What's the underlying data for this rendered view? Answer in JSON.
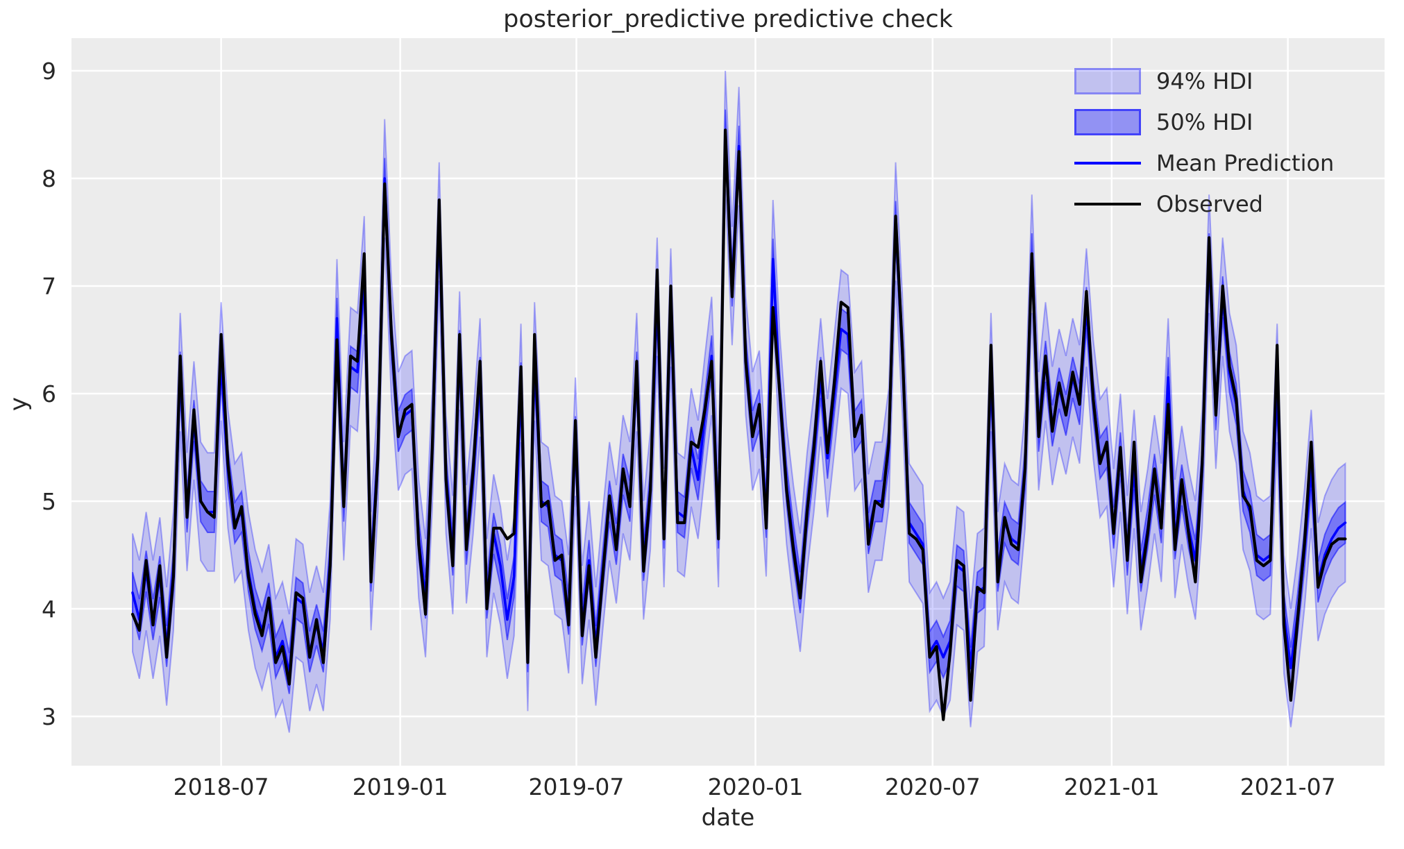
{
  "figure": {
    "title": "posterior_predictive predictive check"
  },
  "chart_data": {
    "type": "line",
    "title": "posterior_predictive predictive check",
    "xlabel": "date",
    "ylabel": "y",
    "grid": true,
    "background_color": "#ececec",
    "grid_color": "#ffffff",
    "text_color": "#262626",
    "x_start_date": "2018-04-01",
    "x_step_days": 7,
    "x_tick_labels": [
      "2018-07",
      "2019-01",
      "2019-07",
      "2020-01",
      "2020-07",
      "2021-01",
      "2021-07"
    ],
    "y_ticks": [
      3,
      4,
      5,
      6,
      7,
      8,
      9
    ],
    "ylim_shown": [
      2.55,
      9.3
    ],
    "legend": {
      "position": "upper right",
      "entries": [
        {
          "label": "94% HDI",
          "type": "band",
          "color": "#0000ff",
          "opacity": 0.18
        },
        {
          "label": "50% HDI",
          "type": "band",
          "color": "#0000ff",
          "opacity": 0.38
        },
        {
          "label": "Mean Prediction",
          "type": "line",
          "color": "#0000ff"
        },
        {
          "label": "Observed",
          "type": "line",
          "color": "#000000"
        }
      ]
    },
    "bands": [
      {
        "name": "94% HDI",
        "around": "Mean Prediction",
        "halfwidth": 0.55,
        "color": "#0000ff",
        "opacity": 0.18
      },
      {
        "name": "50% HDI",
        "around": "Mean Prediction",
        "halfwidth": 0.19,
        "color": "#0000ff",
        "opacity": 0.38
      }
    ],
    "series": [
      {
        "name": "Mean Prediction",
        "color": "#0000ff",
        "values": [
          4.15,
          3.9,
          4.35,
          3.9,
          4.3,
          3.65,
          4.35,
          6.2,
          4.9,
          5.75,
          5.0,
          4.9,
          4.9,
          6.3,
          5.3,
          4.8,
          4.9,
          4.35,
          4.0,
          3.8,
          4.05,
          3.55,
          3.7,
          3.4,
          4.1,
          4.05,
          3.6,
          3.85,
          3.6,
          4.45,
          6.7,
          5.0,
          6.25,
          6.2,
          7.1,
          4.35,
          5.45,
          8.0,
          6.5,
          5.65,
          5.8,
          5.85,
          4.65,
          4.1,
          5.5,
          7.6,
          5.25,
          4.5,
          6.4,
          4.6,
          5.25,
          6.15,
          4.1,
          4.7,
          4.4,
          3.9,
          4.3,
          6.1,
          3.6,
          6.3,
          5.0,
          4.95,
          4.5,
          4.45,
          3.95,
          5.6,
          3.85,
          4.45,
          3.65,
          4.35,
          5.0,
          4.6,
          5.25,
          5.0,
          6.2,
          4.45,
          5.1,
          6.9,
          4.75,
          6.8,
          4.9,
          4.85,
          5.5,
          5.2,
          5.8,
          6.35,
          4.75,
          8.45,
          7.0,
          8.3,
          6.35,
          5.65,
          5.85,
          4.85,
          7.25,
          6.0,
          5.15,
          4.6,
          4.15,
          4.9,
          5.45,
          6.15,
          5.4,
          6.0,
          6.6,
          6.55,
          5.65,
          5.75,
          4.7,
          5.0,
          5.0,
          5.5,
          7.6,
          6.35,
          4.8,
          4.7,
          4.6,
          3.6,
          3.7,
          3.55,
          3.7,
          4.4,
          4.35,
          3.45,
          4.15,
          4.2,
          6.2,
          4.35,
          4.8,
          4.65,
          4.6,
          5.3,
          7.3,
          5.65,
          6.3,
          5.7,
          6.05,
          5.8,
          6.15,
          5.9,
          6.8,
          5.95,
          5.4,
          5.5,
          4.75,
          5.45,
          4.5,
          5.3,
          4.35,
          4.75,
          5.25,
          4.8,
          6.15,
          4.65,
          5.15,
          4.75,
          4.45,
          5.3,
          7.3,
          5.85,
          6.9,
          6.2,
          5.9,
          5.1,
          4.9,
          4.5,
          4.45,
          4.5,
          6.1,
          3.95,
          3.45,
          3.95,
          4.55,
          5.3,
          4.25,
          4.5,
          4.65,
          4.75,
          4.8
        ]
      },
      {
        "name": "Observed",
        "color": "#000000",
        "values": [
          3.95,
          3.8,
          4.45,
          3.85,
          4.4,
          3.55,
          4.3,
          6.35,
          4.85,
          5.85,
          5.0,
          4.9,
          4.85,
          6.55,
          5.35,
          4.75,
          4.95,
          4.3,
          3.95,
          3.75,
          4.1,
          3.5,
          3.65,
          3.3,
          4.15,
          4.1,
          3.55,
          3.9,
          3.5,
          4.4,
          6.5,
          4.95,
          6.35,
          6.3,
          7.3,
          4.25,
          5.4,
          7.95,
          6.55,
          5.6,
          5.85,
          5.9,
          4.6,
          3.95,
          5.5,
          7.8,
          5.2,
          4.4,
          6.55,
          4.55,
          5.3,
          6.3,
          4.0,
          4.75,
          4.75,
          4.65,
          4.7,
          6.25,
          3.5,
          6.55,
          4.95,
          5.0,
          4.45,
          4.5,
          3.85,
          5.75,
          3.75,
          4.4,
          3.55,
          4.3,
          5.05,
          4.55,
          5.3,
          4.95,
          6.3,
          4.35,
          5.1,
          7.15,
          4.65,
          7.0,
          4.8,
          4.8,
          5.55,
          5.5,
          5.85,
          6.3,
          4.65,
          8.45,
          6.9,
          8.25,
          6.3,
          5.6,
          5.9,
          4.75,
          6.8,
          6.0,
          5.1,
          4.55,
          4.1,
          4.9,
          5.5,
          6.3,
          5.45,
          6.1,
          6.85,
          6.8,
          5.6,
          5.8,
          4.6,
          5.0,
          4.95,
          5.55,
          7.65,
          6.4,
          4.7,
          4.65,
          4.55,
          3.55,
          3.65,
          2.97,
          3.6,
          4.45,
          4.4,
          3.15,
          4.2,
          4.15,
          6.45,
          4.25,
          4.85,
          4.6,
          4.55,
          5.3,
          7.3,
          5.6,
          6.35,
          5.65,
          6.1,
          5.8,
          6.2,
          5.9,
          6.95,
          5.95,
          5.35,
          5.55,
          4.7,
          5.5,
          4.45,
          5.55,
          4.25,
          4.7,
          5.3,
          4.75,
          5.9,
          4.55,
          5.2,
          4.7,
          4.25,
          5.35,
          7.45,
          5.8,
          7.0,
          6.25,
          5.95,
          5.05,
          4.95,
          4.45,
          4.4,
          4.45,
          6.45,
          3.85,
          3.15,
          3.9,
          4.6,
          5.55,
          4.2,
          4.45,
          4.6,
          4.65,
          4.65
        ]
      }
    ]
  }
}
